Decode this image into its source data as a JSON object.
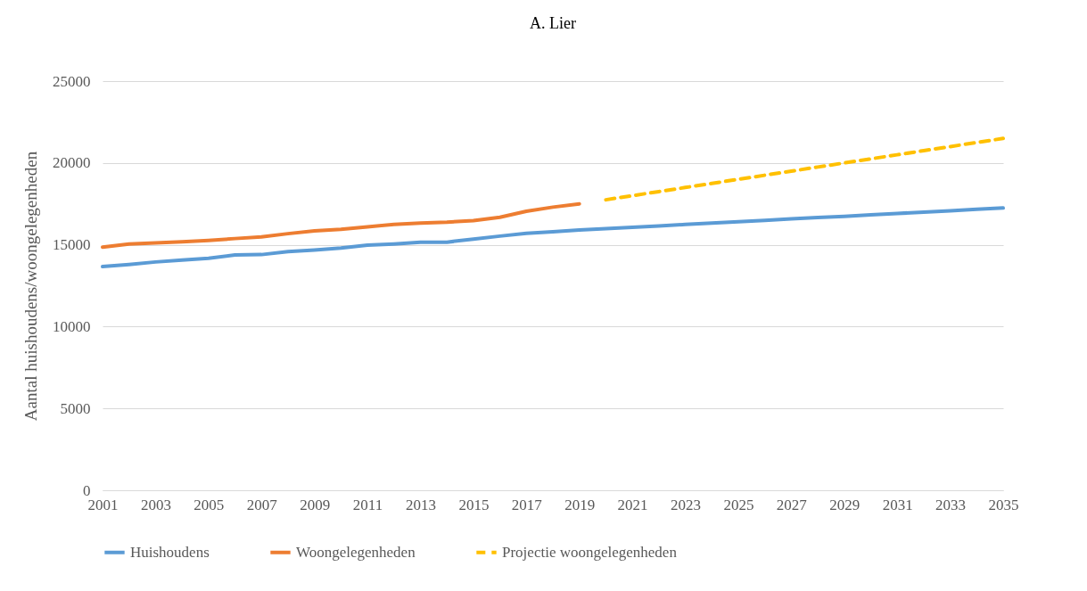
{
  "chart_data": {
    "type": "line",
    "title": "A. Lier",
    "ylabel": "Aantal huishoudens/woongelegenheden",
    "xlim": [
      2001,
      2035
    ],
    "xticks": [
      2001,
      2003,
      2005,
      2007,
      2009,
      2011,
      2013,
      2015,
      2017,
      2019,
      2021,
      2023,
      2025,
      2027,
      2029,
      2031,
      2033,
      2035
    ],
    "ylim": [
      0,
      25000
    ],
    "yticks": [
      0,
      5000,
      10000,
      15000,
      20000,
      25000
    ],
    "grid": "y",
    "legend": "bottom",
    "series": [
      {
        "name": "Huishoudens",
        "color": "#5b9bd5",
        "line_style": "solid",
        "x": [
          2001,
          2002,
          2003,
          2004,
          2005,
          2006,
          2007,
          2008,
          2009,
          2010,
          2011,
          2012,
          2013,
          2014,
          2015,
          2016,
          2017,
          2018,
          2019,
          2020,
          2021,
          2022,
          2023,
          2024,
          2025,
          2026,
          2027,
          2028,
          2029,
          2030,
          2031,
          2032,
          2033,
          2034,
          2035
        ],
        "values": [
          13670,
          13800,
          13950,
          14070,
          14180,
          14380,
          14400,
          14580,
          14680,
          14800,
          14980,
          15050,
          15150,
          15160,
          15350,
          15530,
          15700,
          15800,
          15900,
          15990,
          16070,
          16150,
          16240,
          16320,
          16410,
          16490,
          16580,
          16660,
          16740,
          16830,
          16910,
          17000,
          17080,
          17170,
          17250
        ]
      },
      {
        "name": "Woongelegenheden",
        "color": "#ed7d31",
        "line_style": "solid",
        "x": [
          2001,
          2002,
          2003,
          2004,
          2005,
          2006,
          2007,
          2008,
          2009,
          2010,
          2011,
          2012,
          2013,
          2014,
          2015,
          2016,
          2017,
          2018,
          2019
        ],
        "values": [
          14850,
          15050,
          15120,
          15180,
          15270,
          15380,
          15480,
          15680,
          15850,
          15950,
          16100,
          16250,
          16330,
          16380,
          16480,
          16680,
          17050,
          17300,
          17500
        ]
      },
      {
        "name": "Projectie woongelegenheden",
        "color": "#ffc000",
        "line_style": "dashed",
        "x": [
          2020,
          2021,
          2022,
          2023,
          2024,
          2025,
          2026,
          2027,
          2028,
          2029,
          2030,
          2031,
          2032,
          2033,
          2034,
          2035
        ],
        "values": [
          17750,
          18000,
          18250,
          18500,
          18750,
          19000,
          19250,
          19500,
          19750,
          20000,
          20250,
          20500,
          20750,
          21000,
          21250,
          21500
        ]
      }
    ]
  }
}
